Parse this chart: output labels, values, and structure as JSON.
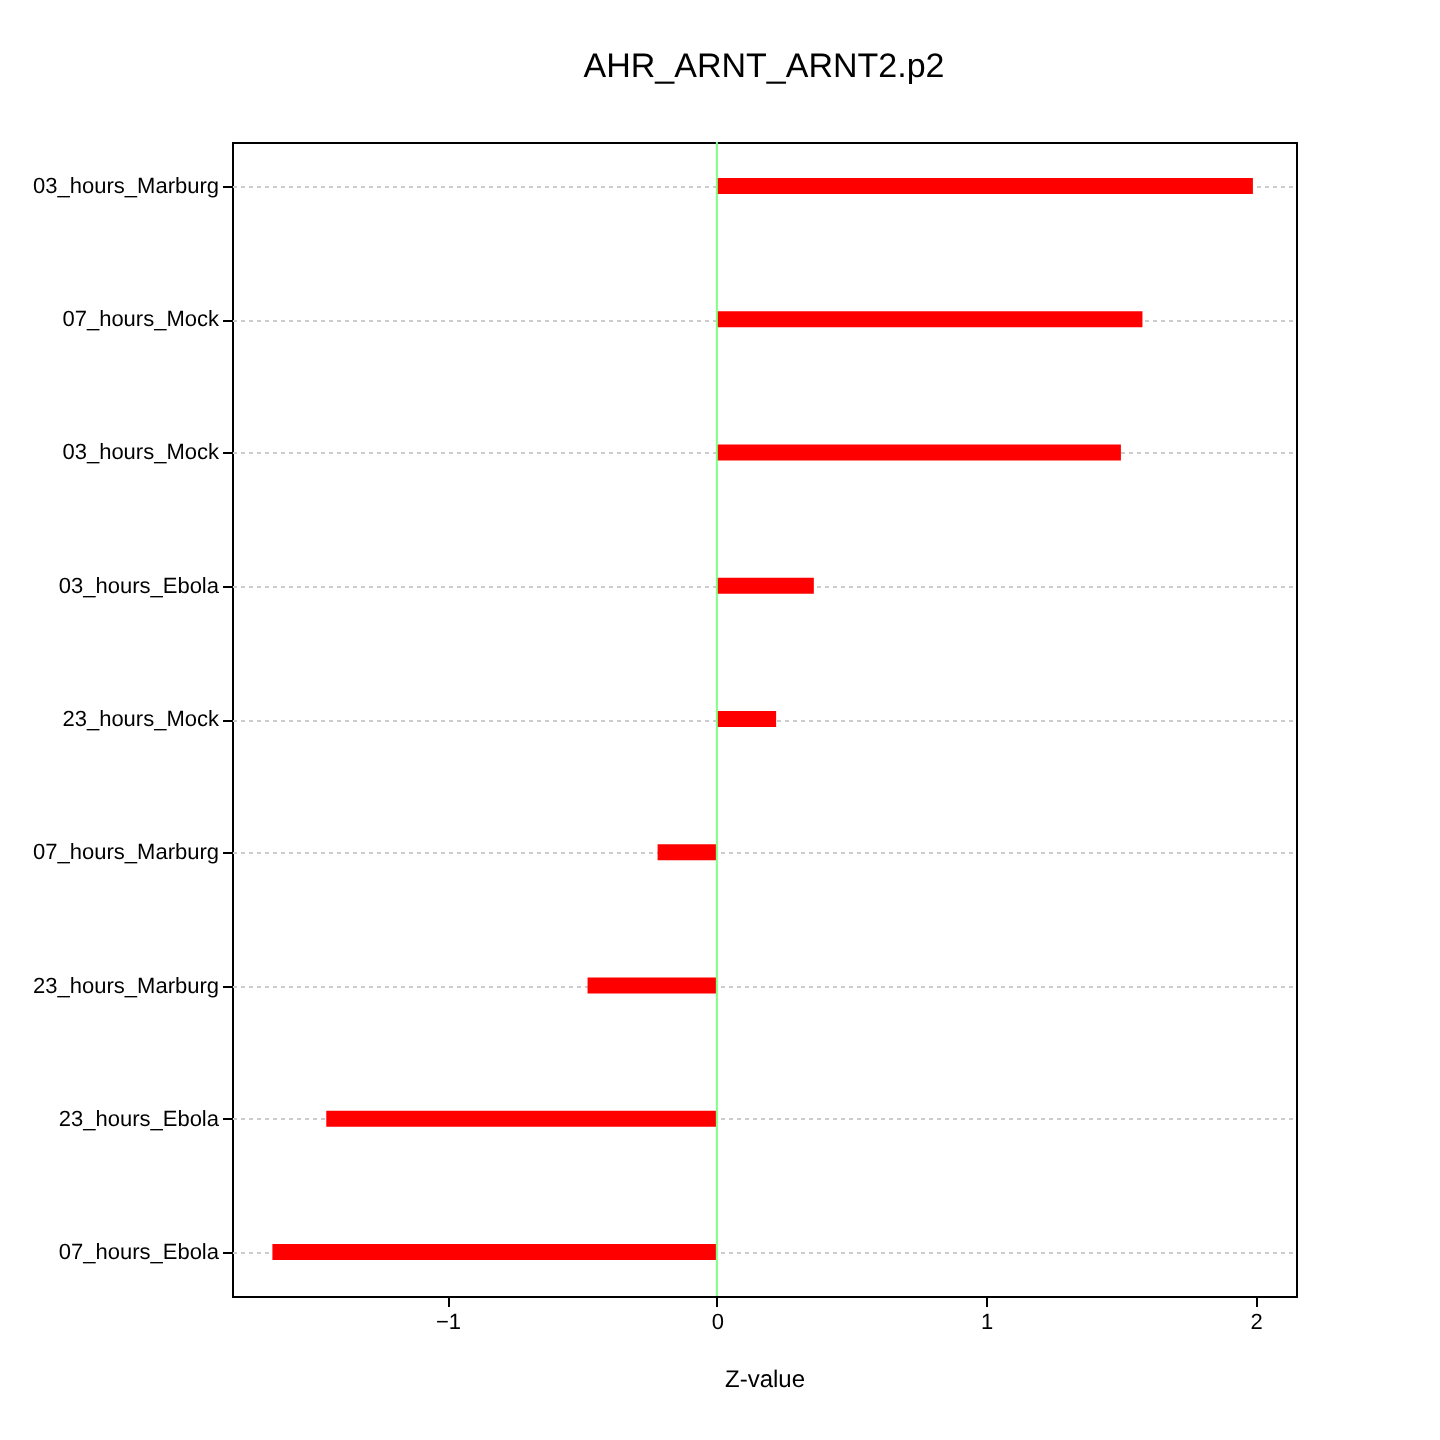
{
  "chart_data": {
    "type": "bar",
    "orientation": "horizontal",
    "title": "AHR_ARNT_ARNT2.p2",
    "xlabel": "Z-value",
    "categories": [
      "03_hours_Marburg",
      "07_hours_Mock",
      "03_hours_Mock",
      "03_hours_Ebola",
      "23_hours_Mock",
      "07_hours_Marburg",
      "23_hours_Marburg",
      "23_hours_Ebola",
      "07_hours_Ebola"
    ],
    "values": [
      1.99,
      1.58,
      1.5,
      0.36,
      0.22,
      -0.22,
      -0.48,
      -1.45,
      -1.65
    ],
    "color": "#ff0000",
    "xlim": [
      -1.8,
      2.15
    ],
    "xticks": [
      -1,
      0,
      1,
      2
    ],
    "grid": "y",
    "ref_lines": [
      {
        "axis": "x",
        "value": 0,
        "color": "#80ff80"
      }
    ]
  }
}
